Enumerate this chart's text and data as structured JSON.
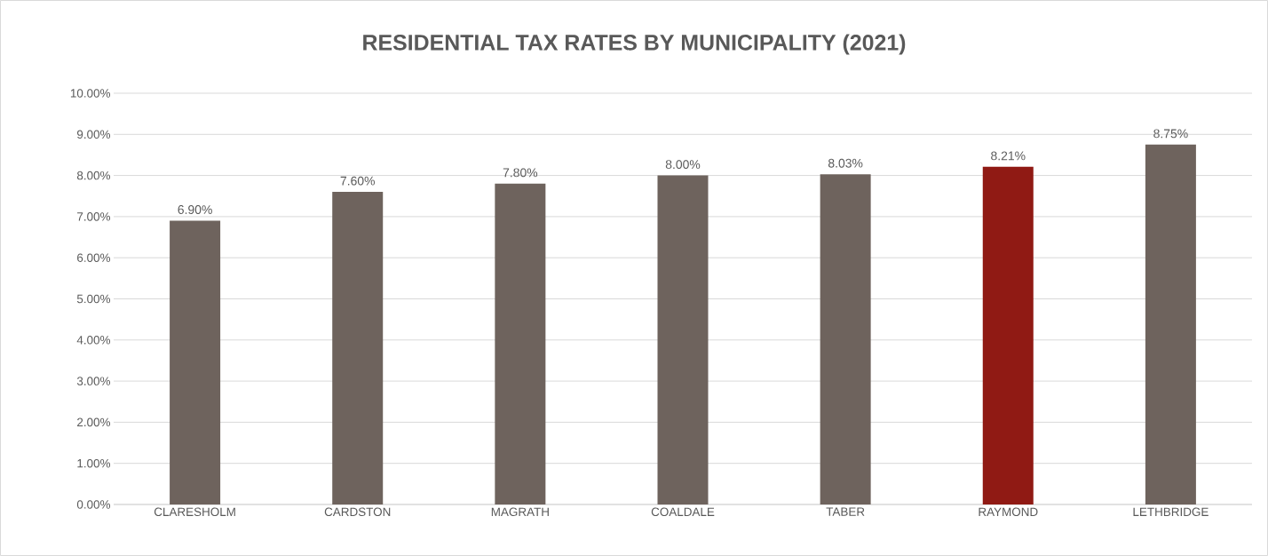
{
  "chart_data": {
    "type": "bar",
    "title": "RESIDENTIAL TAX RATES BY MUNICIPALITY (2021)",
    "categories": [
      "CLARESHOLM",
      "CARDSTON",
      "MAGRATH",
      "COALDALE",
      "TABER",
      "RAYMOND",
      "LETHBRIDGE"
    ],
    "values": [
      6.9,
      7.6,
      7.8,
      8.0,
      8.03,
      8.21,
      8.75
    ],
    "value_labels": [
      "6.90%",
      "7.60%",
      "7.80%",
      "8.00%",
      "8.03%",
      "8.21%",
      "8.75%"
    ],
    "colors": [
      "#6e635d",
      "#6e635d",
      "#6e635d",
      "#6e635d",
      "#6e635d",
      "#901a14",
      "#6e635d"
    ],
    "ylim": [
      0,
      10
    ],
    "yticks": [
      {
        "value": 0,
        "label": "0.00%"
      },
      {
        "value": 1,
        "label": "1.00%"
      },
      {
        "value": 2,
        "label": "2.00%"
      },
      {
        "value": 3,
        "label": "3.00%"
      },
      {
        "value": 4,
        "label": "4.00%"
      },
      {
        "value": 5,
        "label": "5.00%"
      },
      {
        "value": 6,
        "label": "6.00%"
      },
      {
        "value": 7,
        "label": "7.00%"
      },
      {
        "value": 8,
        "label": "8.00%"
      },
      {
        "value": 9,
        "label": "9.00%"
      },
      {
        "value": 10,
        "label": "10.00%"
      }
    ],
    "grid": "y"
  }
}
